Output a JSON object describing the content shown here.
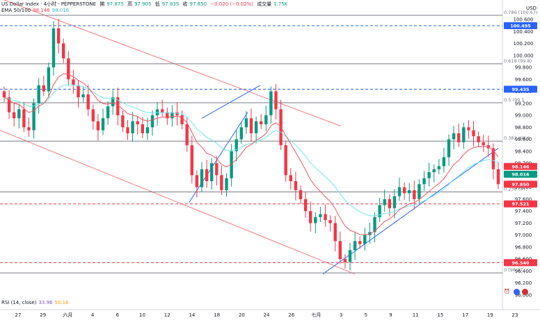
{
  "header": {
    "symbol": "US Dollar Index · 4小时 · PEPPERSTONE",
    "open_label": "開",
    "open": "97.875",
    "high_label": "高",
    "high": "97.905",
    "low_label": "低",
    "low": "97.835",
    "close_label": "收",
    "close": "97.850",
    "change": "−0.020 (−0.02%)",
    "volume_label": "成交量",
    "volume": "1.75K"
  },
  "ema": {
    "label": "EMA 50/100",
    "v1": "98.146",
    "v2": "98.016",
    "color1": "#f7525f",
    "color2": "#6ee7f0"
  },
  "rsi": {
    "label": "RSI (14, close)",
    "v1": "33.96",
    "v2": "50.16"
  },
  "currency": "USD",
  "colors": {
    "up": "#089981",
    "down": "#f23645",
    "grid": "#e0e3eb"
  },
  "chart_data": {
    "type": "candlestick",
    "price_axis": [
      "100.600",
      "100.400",
      "100.200",
      "100.000",
      "99.800",
      "99.600",
      "99.400",
      "99.200",
      "99.000",
      "98.800",
      "98.600",
      "98.400",
      "98.200",
      "98.000",
      "97.800",
      "97.600",
      "97.400",
      "97.200",
      "97.000",
      "96.800",
      "96.600",
      "96.400",
      "96.200",
      "96.000"
    ],
    "time_axis": [
      "27",
      "29",
      "六月",
      "4",
      "6",
      "10",
      "12",
      "14",
      "18",
      "20",
      "24",
      "26",
      "七月",
      "3",
      "5",
      "9",
      "11",
      "15",
      "17",
      "19",
      "23"
    ],
    "fib_levels": [
      {
        "label": "0.786 (100.67)",
        "price": 100.67
      },
      {
        "label": "0.618 (99.8)",
        "price": 99.86
      },
      {
        "label": "0.5 (99.1",
        "price": 99.21
      },
      {
        "label": "0.382 (98.5",
        "price": 98.57
      },
      {
        "label": "0.236 (97.",
        "price": 97.72
      },
      {
        "label": "0 (96.37",
        "price": 96.37
      }
    ],
    "price_tags": [
      {
        "label": "100.495",
        "price": 100.495,
        "color": "#2962ff"
      },
      {
        "label": "99.435",
        "price": 99.435,
        "color": "#2962ff"
      },
      {
        "label": "98.146",
        "price": 98.146,
        "color": "#f23645"
      },
      {
        "label": "98.016",
        "price": 98.016,
        "color": "#089981"
      },
      {
        "label": "USDX",
        "price": 97.85,
        "color": "#f23645"
      },
      {
        "label": "97.850",
        "price": 97.85,
        "color": "#f23645"
      },
      {
        "label": "97.521",
        "price": 97.521,
        "color": "#f23645"
      },
      {
        "label": "96.540",
        "price": 96.54,
        "color": "#f23645"
      }
    ],
    "closes": [
      99.3,
      99.05,
      98.95,
      99.1,
      98.8,
      98.75,
      99.2,
      99.5,
      99.4,
      99.8,
      100.45,
      100.2,
      99.95,
      99.6,
      99.5,
      99.3,
      99.35,
      99.1,
      98.9,
      98.75,
      98.95,
      99.15,
      99.3,
      99.0,
      98.8,
      98.7,
      98.9,
      98.85,
      98.7,
      98.8,
      99.0,
      99.1,
      99.05,
      98.95,
      99.05,
      99.0,
      98.85,
      98.5,
      98.0,
      97.8,
      98.1,
      97.9,
      98.2,
      98.0,
      97.75,
      97.95,
      98.4,
      98.6,
      98.8,
      98.95,
      98.7,
      98.9,
      98.85,
      99.0,
      99.4,
      99.1,
      98.5,
      98.0,
      97.9,
      97.75,
      97.6,
      97.4,
      97.2,
      97.3,
      97.35,
      97.25,
      97.2,
      96.9,
      96.6,
      96.55,
      96.75,
      96.9,
      96.85,
      97.0,
      97.05,
      97.3,
      97.5,
      97.6,
      97.45,
      97.65,
      97.8,
      97.7,
      97.75,
      97.6,
      97.85,
      97.95,
      98.05,
      98.1,
      98.15,
      98.3,
      98.6,
      98.7,
      98.55,
      98.8,
      98.75,
      98.65,
      98.55,
      98.5,
      98.45,
      98.1,
      97.85
    ]
  }
}
